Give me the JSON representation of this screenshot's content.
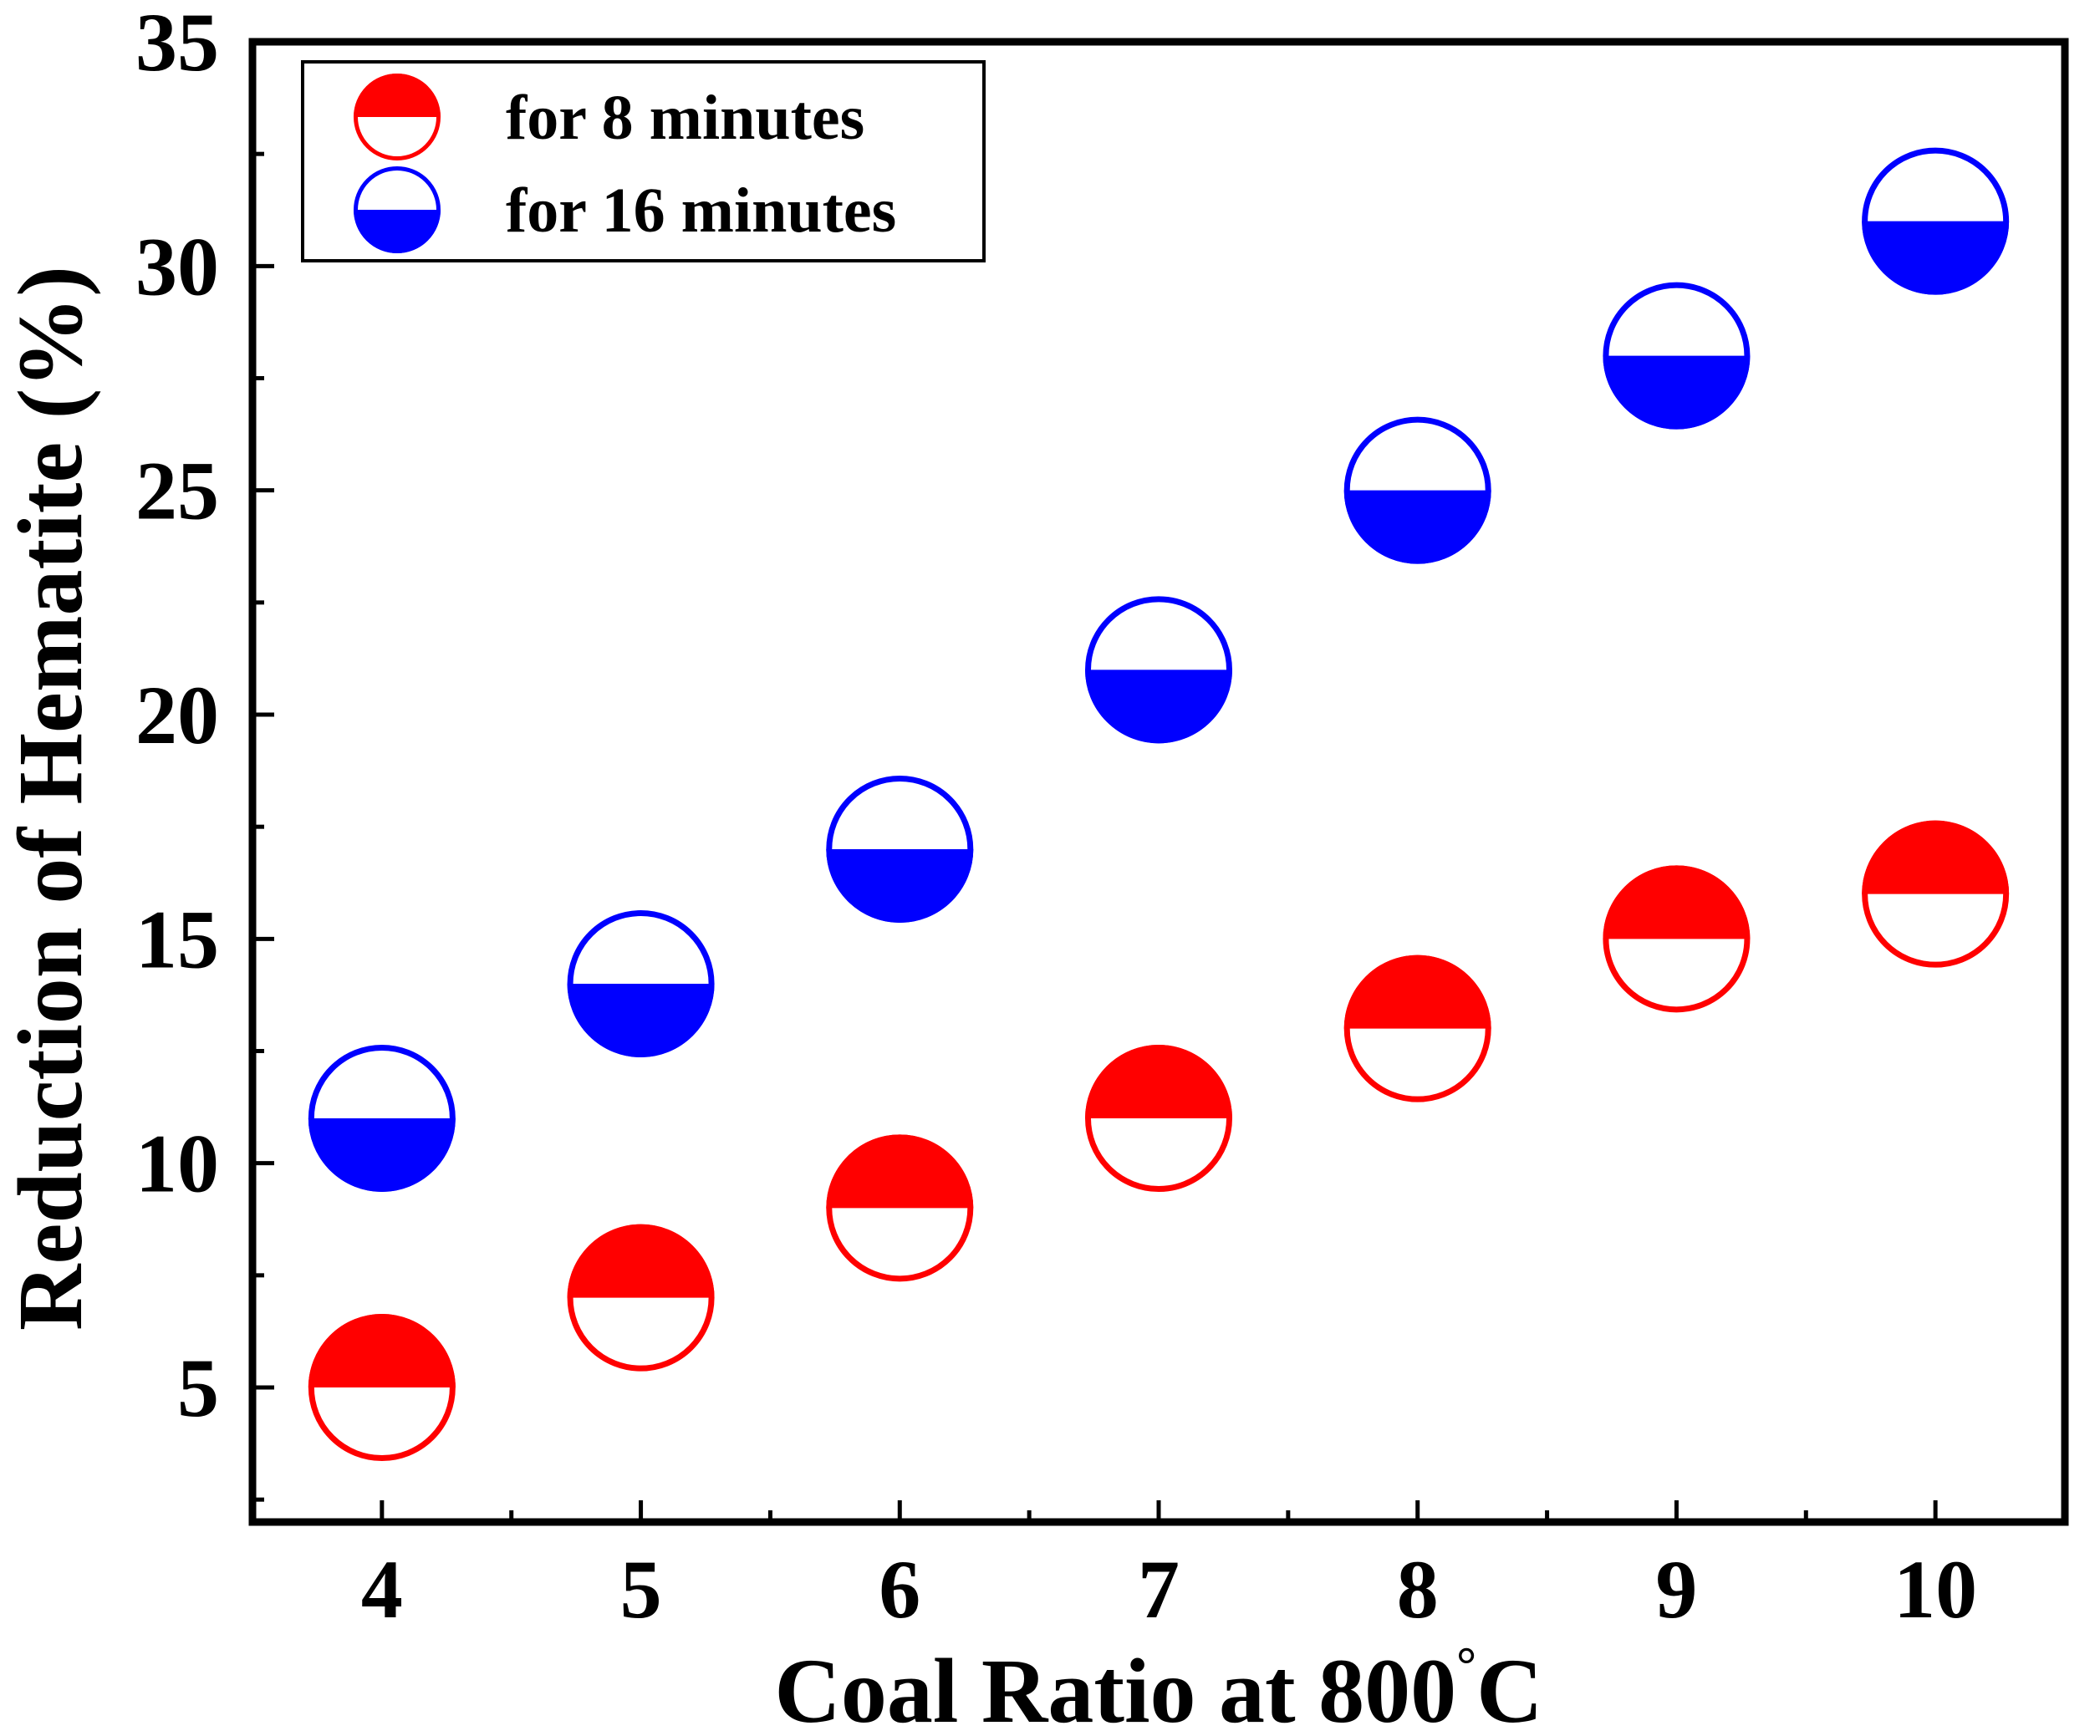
{
  "chart_data": {
    "type": "scatter",
    "title": "",
    "xlabel": "Coal Ratio at 800",
    "xlabel_degree": "°",
    "xlabel_unit": "C",
    "ylabel": "Reduction of Hematite (%)",
    "x": [
      4,
      5,
      6,
      7,
      8,
      9,
      10
    ],
    "xlim": [
      3.5,
      10.5
    ],
    "ylim": [
      2.0,
      35.0
    ],
    "xticks": [
      "4",
      "5",
      "6",
      "7",
      "8",
      "9",
      "10"
    ],
    "yticks": [
      "5",
      "10",
      "15",
      "20",
      "25",
      "30",
      "35"
    ],
    "legend_position": "top-left",
    "series": [
      {
        "name": "for 8 minutes",
        "color": "#ff0000",
        "fill_half": "top",
        "values": [
          5,
          7,
          9,
          11,
          13,
          15,
          16
        ]
      },
      {
        "name": "for 16 minutes",
        "color": "#0000ff",
        "fill_half": "bottom",
        "values": [
          11,
          14,
          17,
          21,
          25,
          28,
          31
        ]
      }
    ]
  }
}
